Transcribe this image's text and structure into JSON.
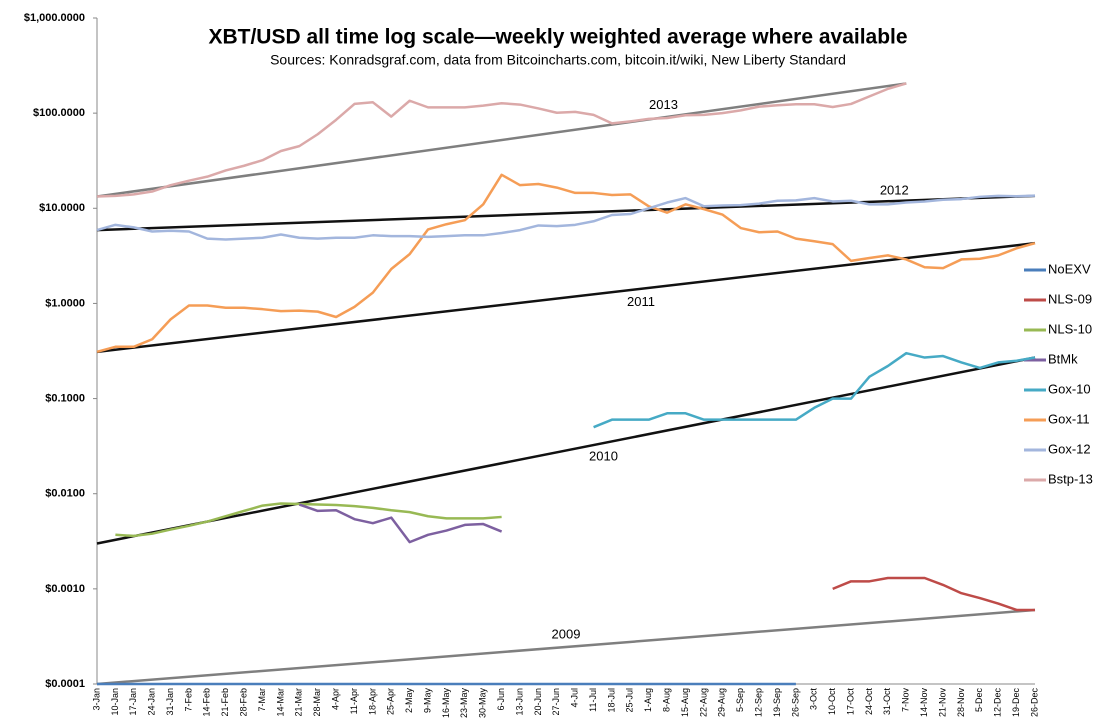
{
  "chart_data": {
    "type": "line",
    "title": "XBT/USD all time log scale—weekly weighted average where available",
    "subtitle": "Sources: Konradsgraf.com, data from Bitcoincharts.com, bitcoin.it/wiki, New Liberty Standard",
    "log_scale": true,
    "grid": false,
    "legend": "right",
    "categories": [
      "3-Jan",
      "10-Jan",
      "17-Jan",
      "24-Jan",
      "31-Jan",
      "7-Feb",
      "14-Feb",
      "21-Feb",
      "28-Feb",
      "7-Mar",
      "14-Mar",
      "21-Mar",
      "28-Mar",
      "4-Apr",
      "11-Apr",
      "18-Apr",
      "25-Apr",
      "2-May",
      "9-May",
      "16-May",
      "23-May",
      "30-May",
      "6-Jun",
      "13-Jun",
      "20-Jun",
      "27-Jun",
      "4-Jul",
      "11-Jul",
      "18-Jul",
      "25-Jul",
      "1-Aug",
      "8-Aug",
      "15-Aug",
      "22-Aug",
      "29-Aug",
      "5-Sep",
      "12-Sep",
      "19-Sep",
      "26-Sep",
      "3-Oct",
      "10-Oct",
      "17-Oct",
      "24-Oct",
      "31-Oct",
      "7-Nov",
      "14-Nov",
      "21-Nov",
      "28-Nov",
      "5-Dec",
      "12-Dec",
      "19-Dec",
      "26-Dec"
    ],
    "ylim": [
      0.0001,
      1000
    ],
    "yticks": [
      {
        "value": 0.0001,
        "label": "$0.0001"
      },
      {
        "value": 0.001,
        "label": "$0.0010"
      },
      {
        "value": 0.01,
        "label": "$0.0100"
      },
      {
        "value": 0.1,
        "label": "$0.1000"
      },
      {
        "value": 1,
        "label": "$1.0000"
      },
      {
        "value": 10,
        "label": "$10.0000"
      },
      {
        "value": 100,
        "label": "$100.0000"
      },
      {
        "value": 1000,
        "label": "$1,000.0000"
      }
    ],
    "series": [
      {
        "name": "NoEXV",
        "color": "#4a7ebb",
        "values": [
          0.0001,
          0.0001,
          0.0001,
          0.0001,
          0.0001,
          0.0001,
          0.0001,
          0.0001,
          0.0001,
          0.0001,
          0.0001,
          0.0001,
          0.0001,
          0.0001,
          0.0001,
          0.0001,
          0.0001,
          0.0001,
          0.0001,
          0.0001,
          0.0001,
          0.0001,
          0.0001,
          0.0001,
          0.0001,
          0.0001,
          0.0001,
          0.0001,
          0.0001,
          0.0001,
          0.0001,
          0.0001,
          0.0001,
          0.0001,
          0.0001,
          0.0001,
          0.0001,
          0.0001,
          0.0001,
          null,
          null,
          null,
          null,
          null,
          null,
          null,
          null,
          null,
          null,
          null,
          null,
          null
        ]
      },
      {
        "name": "NLS-09",
        "color": "#be4b48",
        "values": [
          null,
          null,
          null,
          null,
          null,
          null,
          null,
          null,
          null,
          null,
          null,
          null,
          null,
          null,
          null,
          null,
          null,
          null,
          null,
          null,
          null,
          null,
          null,
          null,
          null,
          null,
          null,
          null,
          null,
          null,
          null,
          null,
          null,
          null,
          null,
          null,
          null,
          null,
          null,
          null,
          0.001,
          0.0012,
          0.0012,
          0.0013,
          0.0013,
          0.0013,
          0.0011,
          0.0009,
          0.0008,
          0.0007,
          0.0006,
          0.0006
        ]
      },
      {
        "name": "NLS-10",
        "color": "#98b954",
        "values": [
          null,
          0.0037,
          0.0036,
          0.0038,
          0.0042,
          0.0046,
          0.0051,
          0.0058,
          0.0066,
          0.0075,
          0.0079,
          0.0078,
          0.0077,
          0.0076,
          0.0074,
          0.0071,
          0.0067,
          0.0064,
          0.0058,
          0.0055,
          0.0055,
          0.0055,
          0.0057,
          null,
          null,
          null,
          null,
          null,
          null,
          null,
          null,
          null,
          null,
          null,
          null,
          null,
          null,
          null,
          null,
          null,
          null,
          null,
          null,
          null,
          null,
          null,
          null,
          null,
          null,
          null,
          null,
          null
        ]
      },
      {
        "name": "BtMk",
        "color": "#7d60a0",
        "values": [
          null,
          null,
          null,
          null,
          null,
          null,
          null,
          null,
          null,
          null,
          null,
          0.0077,
          0.0066,
          0.0067,
          0.0054,
          0.0049,
          0.0056,
          0.0031,
          0.0037,
          0.0041,
          0.0047,
          0.0048,
          0.004,
          null,
          null,
          null,
          null,
          null,
          null,
          null,
          null,
          null,
          null,
          null,
          null,
          null,
          null,
          null,
          null,
          null,
          null,
          null,
          null,
          null,
          null,
          null,
          null,
          null,
          null,
          null,
          null,
          null
        ]
      },
      {
        "name": "Gox-10",
        "color": "#46aac5",
        "values": [
          null,
          null,
          null,
          null,
          null,
          null,
          null,
          null,
          null,
          null,
          null,
          null,
          null,
          null,
          null,
          null,
          null,
          null,
          null,
          null,
          null,
          null,
          null,
          null,
          null,
          null,
          null,
          0.05,
          0.06,
          0.06,
          0.06,
          0.07,
          0.07,
          0.06,
          0.06,
          0.06,
          0.06,
          0.06,
          0.06,
          0.08,
          0.1,
          0.1,
          0.17,
          0.22,
          0.3,
          0.27,
          0.28,
          0.24,
          0.21,
          0.24,
          0.25,
          0.27
        ]
      },
      {
        "name": "Gox-11",
        "color": "#f59d56",
        "values": [
          0.31,
          0.35,
          0.35,
          0.42,
          0.68,
          0.95,
          0.95,
          0.9,
          0.9,
          0.87,
          0.83,
          0.84,
          0.82,
          0.72,
          0.92,
          1.3,
          2.3,
          3.3,
          6.0,
          6.8,
          7.5,
          11.0,
          22.5,
          17.5,
          18.0,
          16.5,
          14.5,
          14.5,
          13.8,
          14.0,
          10.5,
          9.0,
          11.0,
          9.8,
          8.6,
          6.2,
          5.6,
          5.7,
          4.8,
          4.5,
          4.2,
          2.8,
          3.0,
          3.2,
          2.9,
          2.4,
          2.35,
          2.9,
          2.95,
          3.2,
          3.8,
          4.3
        ]
      },
      {
        "name": "Gox-12",
        "color": "#a3b6dd",
        "values": [
          5.9,
          6.7,
          6.3,
          5.7,
          5.8,
          5.7,
          4.8,
          4.7,
          4.8,
          4.9,
          5.3,
          4.9,
          4.8,
          4.9,
          4.9,
          5.2,
          5.1,
          5.1,
          5.0,
          5.1,
          5.2,
          5.2,
          5.5,
          5.9,
          6.6,
          6.5,
          6.7,
          7.3,
          8.5,
          8.7,
          10.0,
          11.5,
          12.8,
          10.5,
          10.7,
          10.8,
          11.2,
          12.0,
          12.1,
          12.8,
          11.8,
          12.0,
          11.0,
          11.0,
          11.5,
          11.8,
          12.3,
          12.5,
          13.2,
          13.5,
          13.4,
          13.6
        ]
      },
      {
        "name": "Bstp-13",
        "color": "#dba9a9",
        "values": [
          13.3,
          13.5,
          14,
          15,
          17.5,
          19.5,
          21.5,
          25,
          28,
          32,
          40,
          45,
          60,
          85,
          125,
          130,
          92,
          135,
          115,
          115,
          115,
          120,
          127,
          123,
          112,
          101,
          103,
          96,
          78,
          82,
          87,
          89,
          95,
          96,
          100,
          107,
          117,
          121,
          124,
          124,
          116,
          125,
          150,
          180,
          205,
          null,
          null,
          null,
          null,
          null,
          null,
          null
        ]
      }
    ],
    "trendlines": [
      {
        "label": "2013",
        "color": "#7f7f7f",
        "x": [
          "3-Jan",
          "7-Nov"
        ],
        "values": [
          13.3,
          205
        ]
      },
      {
        "label": "2012",
        "color": "#111111",
        "x": [
          "3-Jan",
          "26-Dec"
        ],
        "values": [
          5.9,
          13.5
        ]
      },
      {
        "label": "2011",
        "color": "#111111",
        "x": [
          "3-Jan",
          "26-Dec"
        ],
        "values": [
          0.31,
          4.3
        ]
      },
      {
        "label": "2010",
        "color": "#111111",
        "x": [
          "3-Jan",
          "26-Dec"
        ],
        "values": [
          0.003,
          0.27
        ]
      },
      {
        "label": "2009",
        "color": "#7f7f7f",
        "x": [
          "3-Jan",
          "26-Dec"
        ],
        "values": [
          0.0001,
          0.0006
        ]
      }
    ]
  }
}
